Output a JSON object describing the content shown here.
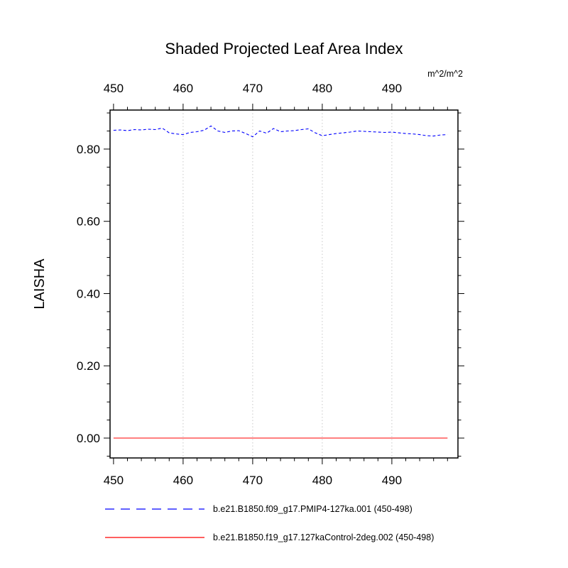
{
  "title": "Shaded Projected Leaf Area Index",
  "legend": [
    {
      "label": "b.e21.B1850.f09_g17.PMIP4-127ka.001 (450-498)",
      "color": "#0000ff",
      "style": "dashed"
    },
    {
      "label": "b.e21.B1850.f19_g17.127kaControl-2deg.002 (450-498)",
      "color": "#ff0000",
      "style": "solid"
    }
  ],
  "chart_data": {
    "type": "line",
    "title": "Shaded Projected Leaf Area Index",
    "ylabel": "LAISHA",
    "units": "m^2/m^2",
    "xlim": [
      449.5,
      499.5
    ],
    "ylim": [
      -0.055,
      0.908
    ],
    "x_ticks": [
      450,
      460,
      470,
      480,
      490
    ],
    "x_minor_step": 2,
    "y_ticks": [
      0.0,
      0.2,
      0.4,
      0.6,
      0.8
    ],
    "y_minor_step": 0.05,
    "top_axis_color": "#0000ff",
    "bottom_axis_color": "#ff0000",
    "grid": {
      "vertical": true,
      "style": "dotted",
      "color": "#c8c8c8"
    },
    "legend_position": "bottom",
    "series": [
      {
        "name": "b.e21.B1850.f09_g17.PMIP4-127ka.001 (450-498)",
        "color": "#0000ff",
        "line_style": "dashed",
        "x": [
          450,
          451,
          452,
          453,
          454,
          455,
          456,
          457,
          458,
          459,
          460,
          461,
          462,
          463,
          464,
          465,
          466,
          467,
          468,
          469,
          470,
          471,
          472,
          473,
          474,
          475,
          476,
          477,
          478,
          479,
          480,
          481,
          482,
          483,
          484,
          485,
          486,
          487,
          488,
          489,
          490,
          491,
          492,
          493,
          494,
          495,
          496,
          497,
          498
        ],
        "y": [
          0.852,
          0.853,
          0.851,
          0.854,
          0.853,
          0.855,
          0.854,
          0.858,
          0.845,
          0.842,
          0.84,
          0.846,
          0.848,
          0.852,
          0.864,
          0.85,
          0.846,
          0.85,
          0.851,
          0.843,
          0.834,
          0.85,
          0.844,
          0.857,
          0.848,
          0.85,
          0.851,
          0.854,
          0.856,
          0.845,
          0.837,
          0.84,
          0.843,
          0.845,
          0.847,
          0.85,
          0.849,
          0.848,
          0.847,
          0.846,
          0.847,
          0.845,
          0.843,
          0.842,
          0.84,
          0.837,
          0.836,
          0.839,
          0.84
        ]
      },
      {
        "name": "b.e21.B1850.f19_g17.127kaControl-2deg.002 (450-498)",
        "color": "#ff0000",
        "line_style": "solid",
        "x": [
          450,
          498
        ],
        "y": [
          0.0,
          0.0
        ]
      }
    ]
  }
}
